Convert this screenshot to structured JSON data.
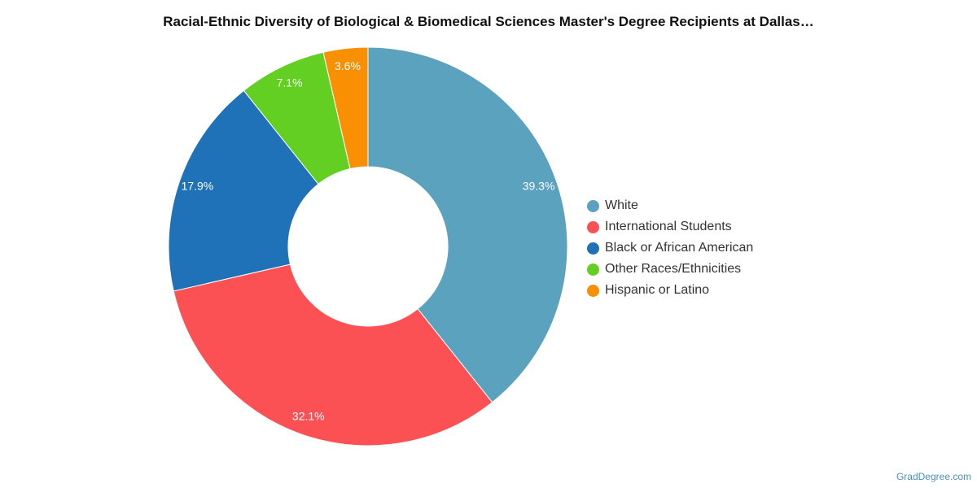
{
  "chart_data": {
    "type": "pie",
    "title": "Racial-Ethnic Diversity of Biological & Biomedical Sciences Master's Degree Recipients at Dallas…",
    "donut": true,
    "legend_placement": "right",
    "slices": [
      {
        "label": "White",
        "value": 39.3,
        "display": "39.3%",
        "color": "#5ba2bf"
      },
      {
        "label": "International Students",
        "value": 32.1,
        "display": "32.1%",
        "color": "#fc5154"
      },
      {
        "label": "Black or African American",
        "value": 17.9,
        "display": "17.9%",
        "color": "#1f72b8"
      },
      {
        "label": "Other Races/Ethnicities",
        "value": 7.1,
        "display": "7.1%",
        "color": "#62cf22"
      },
      {
        "label": "Hispanic or Latino",
        "value": 3.6,
        "display": "3.6%",
        "color": "#f99004"
      }
    ]
  },
  "footer": {
    "credit": "GradDegree.com"
  }
}
